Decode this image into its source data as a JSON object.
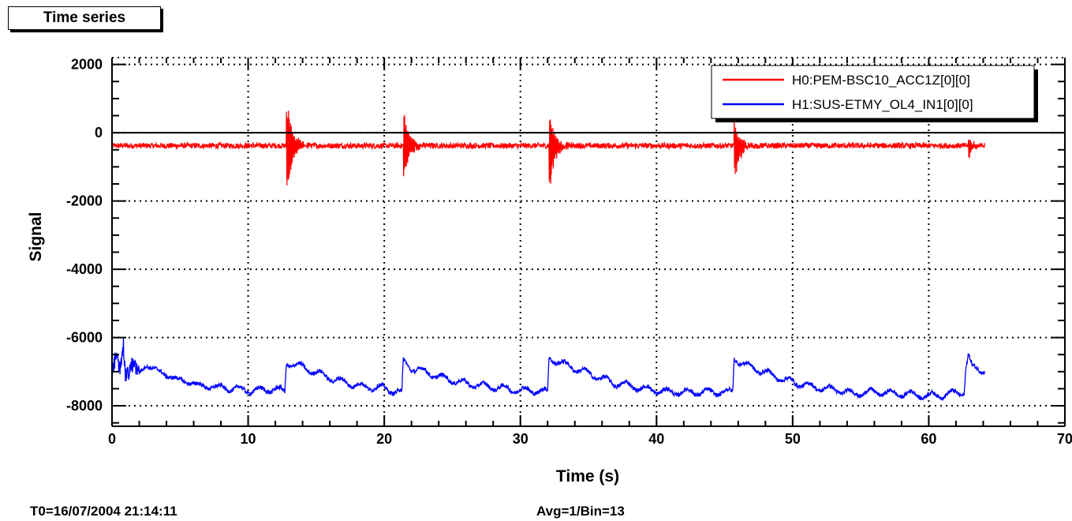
{
  "tab": {
    "label": "Time series"
  },
  "footer": {
    "t0": "T0=16/07/2004 21:14:11",
    "avg": "Avg=1/Bin=13"
  },
  "colors": {
    "series1": "#ff0000",
    "series2": "#0000ff",
    "axis": "#000000"
  },
  "chart_data": {
    "type": "line",
    "xlabel": "Time (s)",
    "ylabel": "Signal",
    "xlim": [
      0,
      70
    ],
    "ylim": [
      -8600,
      2200
    ],
    "x_ticks": [
      0,
      10,
      20,
      30,
      40,
      50,
      60,
      70
    ],
    "x_tick_labels": [
      "0",
      "10",
      "20",
      "30",
      "40",
      "50",
      "60",
      "70"
    ],
    "y_ticks": [
      -8000,
      -6000,
      -4000,
      -2000,
      0,
      2000
    ],
    "y_tick_labels": [
      "-8000",
      "-6000",
      "-4000",
      "-2000",
      "0",
      "2000"
    ],
    "grid": true,
    "legend_position": "top-right",
    "series": [
      {
        "name": "H0:PEM-BSC10_ACC1Z[0][0]",
        "color": "#ff0000",
        "x_end": 64.1,
        "baseline": -380,
        "noise": 80,
        "bursts": [
          {
            "t": 12.8,
            "max": 1250,
            "min": -2100
          },
          {
            "t": 21.4,
            "max": 850,
            "min": -1550
          },
          {
            "t": 32.1,
            "max": 750,
            "min": -1900
          },
          {
            "t": 45.7,
            "max": 350,
            "min": -1700
          },
          {
            "t": 62.9,
            "max": -150,
            "min": -820
          }
        ]
      },
      {
        "name": "H1:SUS-ETMY_OL4_IN1[0][0]",
        "color": "#0000ff",
        "x_end": 64.1,
        "points": [
          [
            0.0,
            -7000
          ],
          [
            0.3,
            -6600
          ],
          [
            0.6,
            -6950
          ],
          [
            0.8,
            -6100
          ],
          [
            1.0,
            -7100
          ],
          [
            1.5,
            -6800
          ],
          [
            2.0,
            -7050
          ],
          [
            2.5,
            -6800
          ],
          [
            3.0,
            -6900
          ],
          [
            4.0,
            -7100
          ],
          [
            5.0,
            -7250
          ],
          [
            6.0,
            -7350
          ],
          [
            7.0,
            -7450
          ],
          [
            8.0,
            -7450
          ],
          [
            9.0,
            -7500
          ],
          [
            10.0,
            -7550
          ],
          [
            11.0,
            -7550
          ],
          [
            12.0,
            -7500
          ],
          [
            12.7,
            -7600
          ],
          [
            12.8,
            -6750
          ],
          [
            13.5,
            -6800
          ],
          [
            14.5,
            -6950
          ],
          [
            15.5,
            -7100
          ],
          [
            16.5,
            -7250
          ],
          [
            17.5,
            -7350
          ],
          [
            18.5,
            -7450
          ],
          [
            19.5,
            -7450
          ],
          [
            20.5,
            -7550
          ],
          [
            21.3,
            -7600
          ],
          [
            21.4,
            -6700
          ],
          [
            22.0,
            -6900
          ],
          [
            23.0,
            -7000
          ],
          [
            24.0,
            -7150
          ],
          [
            25.0,
            -7250
          ],
          [
            26.0,
            -7350
          ],
          [
            27.0,
            -7400
          ],
          [
            28.0,
            -7450
          ],
          [
            29.0,
            -7500
          ],
          [
            30.0,
            -7550
          ],
          [
            31.0,
            -7550
          ],
          [
            32.0,
            -7600
          ],
          [
            32.1,
            -6600
          ],
          [
            33.0,
            -6750
          ],
          [
            34.0,
            -6900
          ],
          [
            35.0,
            -7050
          ],
          [
            36.0,
            -7200
          ],
          [
            37.0,
            -7350
          ],
          [
            38.0,
            -7400
          ],
          [
            39.0,
            -7500
          ],
          [
            40.0,
            -7550
          ],
          [
            41.0,
            -7600
          ],
          [
            42.0,
            -7600
          ],
          [
            43.0,
            -7600
          ],
          [
            44.0,
            -7600
          ],
          [
            45.6,
            -7600
          ],
          [
            45.7,
            -6600
          ],
          [
            46.5,
            -6800
          ],
          [
            47.5,
            -6950
          ],
          [
            48.5,
            -7100
          ],
          [
            49.5,
            -7250
          ],
          [
            50.5,
            -7350
          ],
          [
            51.5,
            -7450
          ],
          [
            52.5,
            -7500
          ],
          [
            53.5,
            -7550
          ],
          [
            54.5,
            -7650
          ],
          [
            55.5,
            -7600
          ],
          [
            56.5,
            -7600
          ],
          [
            57.5,
            -7650
          ],
          [
            58.5,
            -7650
          ],
          [
            59.5,
            -7700
          ],
          [
            60.5,
            -7700
          ],
          [
            61.5,
            -7650
          ],
          [
            62.6,
            -7600
          ],
          [
            62.7,
            -6950
          ],
          [
            62.9,
            -6500
          ],
          [
            63.2,
            -6900
          ],
          [
            64.1,
            -6950
          ]
        ],
        "noise": 60
      }
    ]
  }
}
